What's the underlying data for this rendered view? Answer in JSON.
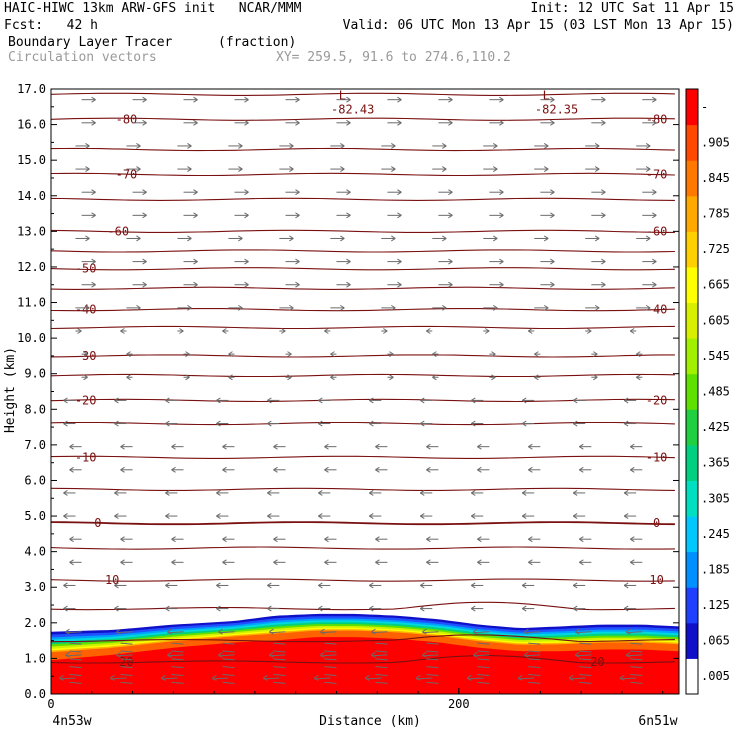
{
  "header": {
    "line1_left": "HAIC-HIWC 13km ARW-GFS init   NCAR/MMM",
    "line1_right": "Init: 12 UTC Sat 11 Apr 15",
    "line2_left": "Fcst:   42 h",
    "line2_right": "Valid: 06 UTC Mon 13 Apr 15 (03 LST Mon 13 Apr 15)",
    "line3_left": "Boundary Layer Tracer",
    "line3_mid": "(fraction)",
    "line4_left": "Circulation vectors",
    "line4_mid": "XY= 259.5, 91.6 to 274.6,110.2"
  },
  "chart_data": {
    "type": "heatmap",
    "xlabel": "Distance (km)",
    "ylabel": "Height (km)",
    "xlim": [
      0,
      308
    ],
    "ylim": [
      0,
      17
    ],
    "x_ticks": [
      0,
      200
    ],
    "x_tick_labels": [
      "0",
      "200"
    ],
    "x_end_labels": [
      "4n53w",
      "6n51w"
    ],
    "y_ticks": [
      0,
      1,
      2,
      3,
      4,
      5,
      6,
      7,
      8,
      9,
      10,
      11,
      12,
      13,
      14,
      15,
      16,
      17
    ],
    "y_tick_labels": [
      "0.0",
      "1.0",
      "2.0",
      "3.0",
      "4.0",
      "5.0",
      "6.0",
      "7.0",
      "8.0",
      "9.0",
      "10.0",
      "11.0",
      "12.0",
      "13.0",
      "14.0",
      "15.0",
      "16.0",
      "17.0"
    ],
    "colorbar": {
      "labels": [
        ".005",
        ".065",
        ".125",
        ".185",
        ".245",
        ".305",
        ".365",
        ".425",
        ".485",
        ".545",
        ".605",
        ".665",
        ".725",
        ".785",
        ".845",
        ".905",
        "-"
      ],
      "colors": [
        "#ffffff",
        "#1010c8",
        "#2040ff",
        "#0090ff",
        "#00c8ff",
        "#00e0c0",
        "#00d080",
        "#20d040",
        "#60e000",
        "#a0f000",
        "#d8f000",
        "#ffff00",
        "#ffd000",
        "#ffa800",
        "#ff7800",
        "#ff4800",
        "#ff0000"
      ]
    },
    "tracer_layer": {
      "x": [
        0,
        30,
        60,
        90,
        110,
        130,
        150,
        170,
        190,
        210,
        230,
        250,
        270,
        290,
        308
      ],
      "top_height": [
        1.75,
        1.8,
        1.95,
        2.05,
        2.2,
        2.25,
        2.25,
        2.2,
        2.1,
        1.95,
        1.85,
        1.9,
        1.95,
        1.95,
        1.9
      ],
      "red_top": [
        0.95,
        1.1,
        1.3,
        1.45,
        1.5,
        1.6,
        1.6,
        1.55,
        1.45,
        1.3,
        1.2,
        1.2,
        1.25,
        1.25,
        1.2
      ]
    },
    "temperature_contours": {
      "levels": [
        -80,
        -70,
        -60,
        -50,
        -40,
        -30,
        -20,
        -10,
        0,
        10,
        20
      ],
      "heights_km": [
        16.15,
        14.6,
        13.0,
        11.95,
        10.8,
        9.5,
        8.25,
        6.65,
        4.8,
        3.2,
        0.9
      ],
      "extra_line_heights_km": [
        16.85,
        15.3,
        13.9,
        12.45,
        11.4,
        10.3,
        8.95,
        7.6,
        5.75,
        4.1,
        2.4,
        1.5
      ],
      "label_left_x": [
        37,
        37,
        33,
        17,
        17,
        17,
        17,
        17,
        23,
        30,
        37
      ],
      "label_right_x": [
        297,
        297,
        297,
        null,
        297,
        null,
        297,
        297,
        297,
        297,
        268
      ]
    },
    "min_labels": [
      {
        "x": 146,
        "y": 16.65,
        "label": "L",
        "value": "-82.43"
      },
      {
        "x": 246,
        "y": 16.65,
        "label": "L",
        "value": "-82.35"
      }
    ],
    "wind_vectors": {
      "upper_direction": "east",
      "lower_direction": "west",
      "transition_height_km": 9.5
    }
  }
}
